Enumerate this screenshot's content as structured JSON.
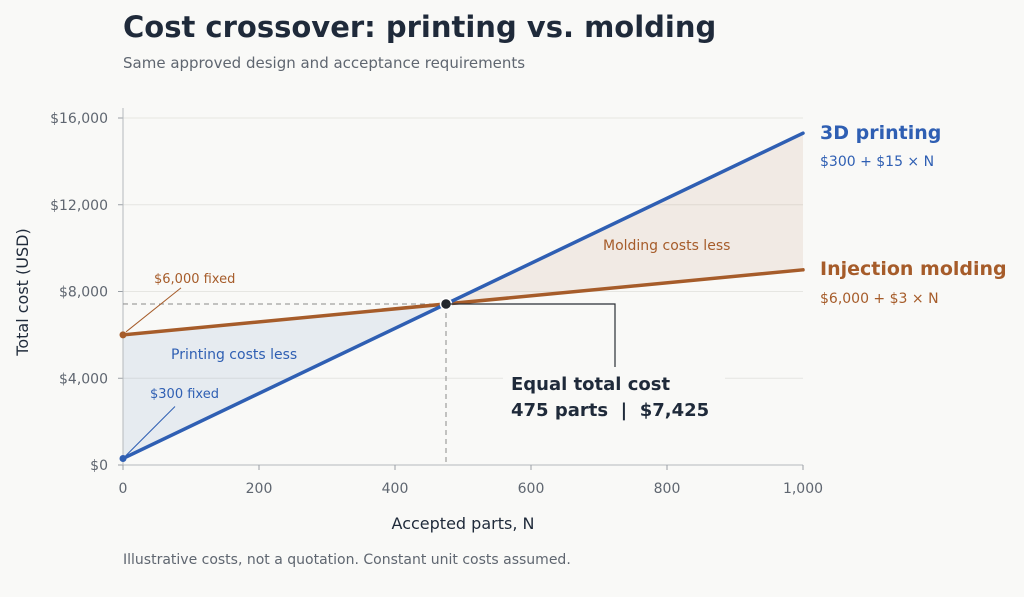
{
  "chart_data": {
    "type": "line",
    "title": "Cost crossover: printing vs. molding",
    "subtitle": "Same approved design and acceptance requirements",
    "xlabel": "Accepted parts, N",
    "ylabel": "Total cost (USD)",
    "xlim": [
      0,
      1000
    ],
    "ylim": [
      0,
      16000
    ],
    "x_ticks": [
      0,
      200,
      400,
      600,
      800,
      1000
    ],
    "x_tick_labels": [
      "0",
      "200",
      "400",
      "600",
      "800",
      "1,000"
    ],
    "y_ticks": [
      0,
      4000,
      8000,
      12000,
      16000
    ],
    "y_tick_labels": [
      "$0",
      "$4,000",
      "$8,000",
      "$12,000",
      "$16,000"
    ],
    "grid": "horizontal",
    "series": [
      {
        "name": "3D printing",
        "formula": "$300 + $15 × N",
        "fixed_label": "$300 fixed",
        "color": "#2f5fb3",
        "x": [
          0,
          1000
        ],
        "y": [
          300,
          15300
        ]
      },
      {
        "name": "Injection molding",
        "formula": "$6,000 + $3 × N",
        "fixed_label": "$6,000 fixed",
        "color": "#a65c2a",
        "x": [
          0,
          1000
        ],
        "y": [
          6000,
          9000
        ]
      }
    ],
    "regions": [
      {
        "label": "Printing costs less",
        "x_range": [
          0,
          475
        ],
        "color": "#2f5fb3"
      },
      {
        "label": "Molding costs less",
        "x_range": [
          475,
          1000
        ],
        "color": "#a65c2a"
      }
    ],
    "crossover": {
      "x": 475,
      "y": 7425,
      "label_line1": "Equal total cost",
      "label_line2": "475 parts  |  $7,425"
    },
    "footnote": "Illustrative costs, not a quotation. Constant unit costs assumed."
  }
}
